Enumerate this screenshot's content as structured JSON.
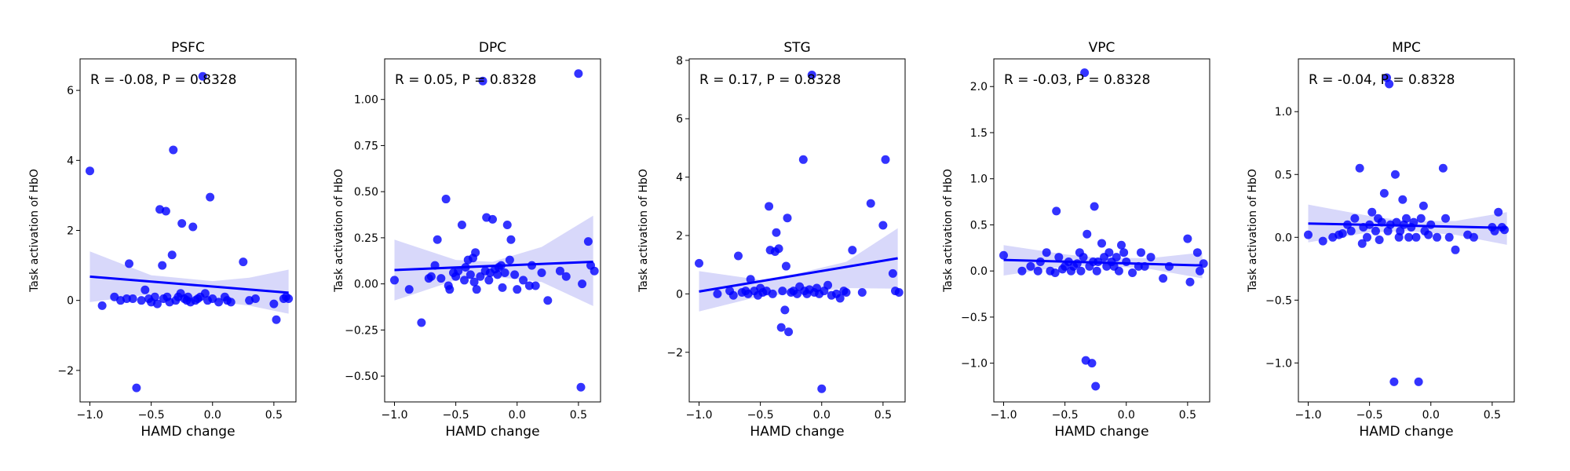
{
  "figure": {
    "xlabel": "HAMD change",
    "ylabel": "Task activation of HbO",
    "point_color": "#0000ff",
    "band_color": "#d8d8fa"
  },
  "chart_data": [
    {
      "type": "scatter",
      "title": "PSFC",
      "annotation": "R = -0.08, P = 0.8328",
      "xlabel": "HAMD change",
      "ylabel": "Task activation of HbO",
      "xlim": [
        -1.08,
        0.68
      ],
      "ylim": [
        -2.9,
        6.9
      ],
      "xticks": [
        -1.0,
        -0.5,
        0.0,
        0.5
      ],
      "xtick_labels": [
        "−1.0",
        "−0.5",
        "0.0",
        "0.5"
      ],
      "yticks": [
        -2,
        0,
        2,
        4,
        6
      ],
      "ytick_labels": [
        "−2",
        "0",
        "2",
        "4",
        "6"
      ],
      "regression": {
        "x": [
          -1.0,
          0.62
        ],
        "y": [
          0.68,
          0.22
        ]
      },
      "band": {
        "x": [
          -1.0,
          -0.5,
          0.0,
          0.3,
          0.62
        ],
        "upper": [
          1.4,
          0.72,
          0.55,
          0.65,
          0.88
        ],
        "lower": [
          -0.05,
          0.18,
          -0.02,
          -0.15,
          -0.38
        ]
      },
      "points": [
        [
          -1.0,
          3.7
        ],
        [
          -0.9,
          -0.15
        ],
        [
          -0.8,
          0.1
        ],
        [
          -0.75,
          0.0
        ],
        [
          -0.7,
          0.05
        ],
        [
          -0.68,
          1.05
        ],
        [
          -0.65,
          0.05
        ],
        [
          -0.62,
          -2.5
        ],
        [
          -0.58,
          0.0
        ],
        [
          -0.55,
          0.3
        ],
        [
          -0.52,
          0.05
        ],
        [
          -0.5,
          -0.05
        ],
        [
          -0.47,
          0.1
        ],
        [
          -0.45,
          -0.1
        ],
        [
          -0.43,
          2.6
        ],
        [
          -0.41,
          1.0
        ],
        [
          -0.4,
          0.05
        ],
        [
          -0.38,
          2.55
        ],
        [
          -0.37,
          0.1
        ],
        [
          -0.35,
          -0.05
        ],
        [
          -0.33,
          1.3
        ],
        [
          -0.32,
          4.3
        ],
        [
          -0.3,
          0.0
        ],
        [
          -0.28,
          0.1
        ],
        [
          -0.26,
          0.2
        ],
        [
          -0.25,
          2.2
        ],
        [
          -0.23,
          0.05
        ],
        [
          -0.21,
          0.0
        ],
        [
          -0.2,
          0.1
        ],
        [
          -0.18,
          -0.05
        ],
        [
          -0.16,
          2.1
        ],
        [
          -0.14,
          0.0
        ],
        [
          -0.12,
          0.05
        ],
        [
          -0.1,
          0.1
        ],
        [
          -0.08,
          6.4
        ],
        [
          -0.06,
          0.2
        ],
        [
          -0.04,
          0.0
        ],
        [
          -0.02,
          2.95
        ],
        [
          0.0,
          0.05
        ],
        [
          0.05,
          -0.05
        ],
        [
          0.1,
          0.1
        ],
        [
          0.12,
          0.0
        ],
        [
          0.15,
          -0.05
        ],
        [
          0.25,
          1.1
        ],
        [
          0.3,
          0.0
        ],
        [
          0.35,
          0.05
        ],
        [
          0.5,
          -0.1
        ],
        [
          0.52,
          -0.55
        ],
        [
          0.58,
          0.05
        ],
        [
          0.6,
          0.1
        ],
        [
          0.62,
          0.05
        ]
      ]
    },
    {
      "type": "scatter",
      "title": "DPC",
      "annotation": "R = 0.05, P = 0.8328",
      "xlabel": "HAMD change",
      "ylabel": "Task activation of HbO",
      "xlim": [
        -1.08,
        0.68
      ],
      "ylim": [
        -0.64,
        1.22
      ],
      "xticks": [
        -1.0,
        -0.5,
        0.0,
        0.5
      ],
      "xtick_labels": [
        "−1.0",
        "−0.5",
        "0.0",
        "0.5"
      ],
      "yticks": [
        -0.5,
        -0.25,
        0.0,
        0.25,
        0.5,
        0.75,
        1.0
      ],
      "ytick_labels": [
        "−0.50",
        "−0.25",
        "0.00",
        "0.25",
        "0.50",
        "0.75",
        "1.00"
      ],
      "regression": {
        "x": [
          -1.0,
          0.62
        ],
        "y": [
          0.075,
          0.12
        ]
      },
      "band": {
        "x": [
          -1.0,
          -0.5,
          -0.2,
          0.2,
          0.62
        ],
        "upper": [
          0.24,
          0.13,
          0.12,
          0.2,
          0.37
        ],
        "lower": [
          -0.09,
          0.02,
          0.04,
          0.01,
          -0.12
        ]
      },
      "points": [
        [
          -1.0,
          0.02
        ],
        [
          -0.88,
          -0.03
        ],
        [
          -0.78,
          -0.21
        ],
        [
          -0.72,
          0.03
        ],
        [
          -0.7,
          0.04
        ],
        [
          -0.67,
          0.1
        ],
        [
          -0.65,
          0.24
        ],
        [
          -0.62,
          0.03
        ],
        [
          -0.58,
          0.46
        ],
        [
          -0.56,
          -0.01
        ],
        [
          -0.55,
          -0.03
        ],
        [
          -0.52,
          0.06
        ],
        [
          -0.5,
          0.04
        ],
        [
          -0.48,
          0.07
        ],
        [
          -0.45,
          0.32
        ],
        [
          -0.43,
          0.02
        ],
        [
          -0.42,
          0.09
        ],
        [
          -0.4,
          0.13
        ],
        [
          -0.38,
          0.05
        ],
        [
          -0.36,
          0.14
        ],
        [
          -0.35,
          0.01
        ],
        [
          -0.34,
          0.17
        ],
        [
          -0.33,
          -0.03
        ],
        [
          -0.3,
          0.04
        ],
        [
          -0.28,
          1.1
        ],
        [
          -0.26,
          0.07
        ],
        [
          -0.25,
          0.36
        ],
        [
          -0.23,
          0.02
        ],
        [
          -0.22,
          0.06
        ],
        [
          -0.2,
          0.35
        ],
        [
          -0.18,
          0.08
        ],
        [
          -0.16,
          0.05
        ],
        [
          -0.15,
          0.09
        ],
        [
          -0.13,
          0.1
        ],
        [
          -0.12,
          -0.02
        ],
        [
          -0.1,
          0.06
        ],
        [
          -0.08,
          0.32
        ],
        [
          -0.06,
          0.13
        ],
        [
          -0.05,
          0.24
        ],
        [
          -0.02,
          0.05
        ],
        [
          0.0,
          -0.03
        ],
        [
          0.05,
          0.02
        ],
        [
          0.1,
          -0.01
        ],
        [
          0.12,
          0.1
        ],
        [
          0.15,
          -0.01
        ],
        [
          0.2,
          0.06
        ],
        [
          0.25,
          -0.09
        ],
        [
          0.35,
          0.07
        ],
        [
          0.4,
          0.04
        ],
        [
          0.5,
          1.14
        ],
        [
          0.52,
          -0.56
        ],
        [
          0.53,
          0.0
        ],
        [
          0.58,
          0.23
        ],
        [
          0.6,
          0.1
        ],
        [
          0.63,
          0.07
        ]
      ]
    },
    {
      "type": "scatter",
      "title": "STG",
      "annotation": "R = 0.17, P = 0.8328",
      "xlabel": "HAMD change",
      "ylabel": "Task activation of HbO",
      "xlim": [
        -1.08,
        0.68
      ],
      "ylim": [
        -3.7,
        8.05
      ],
      "xticks": [
        -1.0,
        -0.5,
        0.0,
        0.5
      ],
      "xtick_labels": [
        "−1.0",
        "−0.5",
        "0.0",
        "0.5"
      ],
      "yticks": [
        -2,
        0,
        2,
        4,
        6,
        8
      ],
      "ytick_labels": [
        "−2",
        "0",
        "2",
        "4",
        "6",
        "8"
      ],
      "regression": {
        "x": [
          -1.0,
          0.62
        ],
        "y": [
          0.08,
          1.22
        ]
      },
      "band": {
        "x": [
          -1.0,
          -0.5,
          -0.2,
          0.2,
          0.62
        ],
        "upper": [
          0.78,
          0.48,
          0.7,
          1.1,
          2.25
        ],
        "lower": [
          -0.6,
          -0.08,
          0.02,
          0.2,
          0.18
        ]
      },
      "points": [
        [
          -1.0,
          1.05
        ],
        [
          -0.85,
          0.0
        ],
        [
          -0.75,
          0.1
        ],
        [
          -0.72,
          -0.05
        ],
        [
          -0.68,
          1.3
        ],
        [
          -0.65,
          0.05
        ],
        [
          -0.62,
          0.1
        ],
        [
          -0.6,
          0.0
        ],
        [
          -0.58,
          0.5
        ],
        [
          -0.55,
          0.1
        ],
        [
          -0.52,
          -0.05
        ],
        [
          -0.5,
          0.2
        ],
        [
          -0.48,
          0.05
        ],
        [
          -0.45,
          0.1
        ],
        [
          -0.43,
          3.0
        ],
        [
          -0.42,
          1.5
        ],
        [
          -0.4,
          0.0
        ],
        [
          -0.38,
          1.45
        ],
        [
          -0.37,
          2.1
        ],
        [
          -0.35,
          1.55
        ],
        [
          -0.33,
          -1.15
        ],
        [
          -0.32,
          0.1
        ],
        [
          -0.3,
          -0.55
        ],
        [
          -0.29,
          0.95
        ],
        [
          -0.28,
          2.6
        ],
        [
          -0.27,
          -1.3
        ],
        [
          -0.25,
          0.05
        ],
        [
          -0.23,
          0.1
        ],
        [
          -0.2,
          0.0
        ],
        [
          -0.18,
          0.25
        ],
        [
          -0.15,
          4.6
        ],
        [
          -0.14,
          0.1
        ],
        [
          -0.12,
          0.0
        ],
        [
          -0.1,
          0.15
        ],
        [
          -0.08,
          7.5
        ],
        [
          -0.06,
          0.05
        ],
        [
          -0.04,
          0.2
        ],
        [
          -0.02,
          0.0
        ],
        [
          0.0,
          -3.25
        ],
        [
          0.02,
          0.1
        ],
        [
          0.05,
          0.3
        ],
        [
          0.08,
          -0.05
        ],
        [
          0.12,
          0.0
        ],
        [
          0.15,
          -0.15
        ],
        [
          0.18,
          0.1
        ],
        [
          0.2,
          0.05
        ],
        [
          0.25,
          1.5
        ],
        [
          0.33,
          0.05
        ],
        [
          0.4,
          3.1
        ],
        [
          0.5,
          2.35
        ],
        [
          0.52,
          4.6
        ],
        [
          0.58,
          0.7
        ],
        [
          0.6,
          0.1
        ],
        [
          0.63,
          0.05
        ]
      ]
    },
    {
      "type": "scatter",
      "title": "VPC",
      "annotation": "R = -0.03, P = 0.8328",
      "xlabel": "HAMD change",
      "ylabel": "Task activation of HbO",
      "xlim": [
        -1.08,
        0.68
      ],
      "ylim": [
        -1.42,
        2.3
      ],
      "xticks": [
        -1.0,
        -0.5,
        0.0,
        0.5
      ],
      "xtick_labels": [
        "−1.0",
        "−0.5",
        "0.0",
        "0.5"
      ],
      "yticks": [
        -1.0,
        -0.5,
        0.0,
        0.5,
        1.0,
        1.5,
        2.0
      ],
      "ytick_labels": [
        "−1.0",
        "−0.5",
        "0.0",
        "0.5",
        "1.0",
        "1.5",
        "2.0"
      ],
      "regression": {
        "x": [
          -1.0,
          0.62
        ],
        "y": [
          0.12,
          0.06
        ]
      },
      "band": {
        "x": [
          -1.0,
          -0.5,
          -0.2,
          0.2,
          0.62
        ],
        "upper": [
          0.28,
          0.18,
          0.14,
          0.14,
          0.2
        ],
        "lower": [
          -0.05,
          0.05,
          0.06,
          0.02,
          -0.08
        ]
      },
      "points": [
        [
          -1.0,
          0.17
        ],
        [
          -0.85,
          0.0
        ],
        [
          -0.78,
          0.05
        ],
        [
          -0.72,
          0.0
        ],
        [
          -0.7,
          0.1
        ],
        [
          -0.65,
          0.2
        ],
        [
          -0.62,
          0.0
        ],
        [
          -0.58,
          -0.02
        ],
        [
          -0.57,
          0.65
        ],
        [
          -0.55,
          0.15
        ],
        [
          -0.52,
          0.02
        ],
        [
          -0.5,
          0.05
        ],
        [
          -0.47,
          0.1
        ],
        [
          -0.45,
          0.0
        ],
        [
          -0.43,
          0.05
        ],
        [
          -0.4,
          0.08
        ],
        [
          -0.38,
          0.2
        ],
        [
          -0.37,
          0.0
        ],
        [
          -0.35,
          0.15
        ],
        [
          -0.34,
          2.15
        ],
        [
          -0.33,
          -0.97
        ],
        [
          -0.32,
          0.4
        ],
        [
          -0.3,
          0.05
        ],
        [
          -0.28,
          -1.0
        ],
        [
          -0.27,
          0.1
        ],
        [
          -0.26,
          0.7
        ],
        [
          -0.25,
          -1.25
        ],
        [
          -0.24,
          0.0
        ],
        [
          -0.23,
          0.1
        ],
        [
          -0.2,
          0.3
        ],
        [
          -0.18,
          0.15
        ],
        [
          -0.16,
          0.05
        ],
        [
          -0.14,
          0.2
        ],
        [
          -0.12,
          0.1
        ],
        [
          -0.1,
          0.05
        ],
        [
          -0.08,
          0.15
        ],
        [
          -0.06,
          0.0
        ],
        [
          -0.04,
          0.28
        ],
        [
          -0.02,
          0.2
        ],
        [
          0.0,
          0.1
        ],
        [
          0.05,
          -0.02
        ],
        [
          0.1,
          0.05
        ],
        [
          0.12,
          0.2
        ],
        [
          0.15,
          0.05
        ],
        [
          0.2,
          0.15
        ],
        [
          0.3,
          -0.08
        ],
        [
          0.35,
          0.05
        ],
        [
          0.5,
          0.35
        ],
        [
          0.52,
          -0.12
        ],
        [
          0.58,
          0.2
        ],
        [
          0.6,
          0.0
        ],
        [
          0.63,
          0.08
        ]
      ]
    },
    {
      "type": "scatter",
      "title": "MPC",
      "annotation": "R = -0.04, P = 0.8328",
      "xlabel": "HAMD change",
      "ylabel": "Task activation of HbO",
      "xlim": [
        -1.08,
        0.68
      ],
      "ylim": [
        -1.31,
        1.42
      ],
      "xticks": [
        -1.0,
        -0.5,
        0.0,
        0.5
      ],
      "xtick_labels": [
        "−1.0",
        "−0.5",
        "0.0",
        "0.5"
      ],
      "yticks": [
        -1.0,
        -0.5,
        0.0,
        0.5,
        1.0
      ],
      "ytick_labels": [
        "−1.0",
        "−0.5",
        "0.0",
        "0.5",
        "1.0"
      ],
      "regression": {
        "x": [
          -1.0,
          0.62
        ],
        "y": [
          0.11,
          0.075
        ]
      },
      "band": {
        "x": [
          -1.0,
          -0.5,
          -0.2,
          0.2,
          0.62
        ],
        "upper": [
          0.26,
          0.17,
          0.13,
          0.13,
          0.2
        ],
        "lower": [
          -0.04,
          0.04,
          0.05,
          0.02,
          -0.06
        ]
      },
      "points": [
        [
          -1.0,
          0.02
        ],
        [
          -0.88,
          -0.03
        ],
        [
          -0.8,
          0.0
        ],
        [
          -0.75,
          0.02
        ],
        [
          -0.72,
          0.03
        ],
        [
          -0.68,
          0.1
        ],
        [
          -0.65,
          0.05
        ],
        [
          -0.62,
          0.15
        ],
        [
          -0.58,
          0.55
        ],
        [
          -0.56,
          -0.05
        ],
        [
          -0.55,
          0.08
        ],
        [
          -0.52,
          0.0
        ],
        [
          -0.5,
          0.1
        ],
        [
          -0.48,
          0.2
        ],
        [
          -0.45,
          0.05
        ],
        [
          -0.43,
          0.15
        ],
        [
          -0.42,
          -0.02
        ],
        [
          -0.4,
          0.12
        ],
        [
          -0.38,
          0.35
        ],
        [
          -0.36,
          1.27
        ],
        [
          -0.35,
          0.05
        ],
        [
          -0.34,
          1.22
        ],
        [
          -0.33,
          0.1
        ],
        [
          -0.3,
          -1.15
        ],
        [
          -0.29,
          0.5
        ],
        [
          -0.28,
          0.12
        ],
        [
          -0.26,
          0.0
        ],
        [
          -0.25,
          0.05
        ],
        [
          -0.23,
          0.3
        ],
        [
          -0.22,
          0.1
        ],
        [
          -0.2,
          0.15
        ],
        [
          -0.18,
          0.0
        ],
        [
          -0.16,
          0.08
        ],
        [
          -0.14,
          0.12
        ],
        [
          -0.12,
          0.0
        ],
        [
          -0.1,
          -1.15
        ],
        [
          -0.08,
          0.15
        ],
        [
          -0.06,
          0.25
        ],
        [
          -0.05,
          0.05
        ],
        [
          -0.02,
          0.02
        ],
        [
          0.0,
          0.1
        ],
        [
          0.05,
          0.0
        ],
        [
          0.1,
          0.55
        ],
        [
          0.12,
          0.15
        ],
        [
          0.15,
          0.0
        ],
        [
          0.2,
          -0.1
        ],
        [
          0.3,
          0.02
        ],
        [
          0.35,
          0.0
        ],
        [
          0.5,
          0.08
        ],
        [
          0.52,
          0.05
        ],
        [
          0.55,
          0.2
        ],
        [
          0.58,
          0.08
        ],
        [
          0.6,
          0.06
        ]
      ]
    }
  ]
}
